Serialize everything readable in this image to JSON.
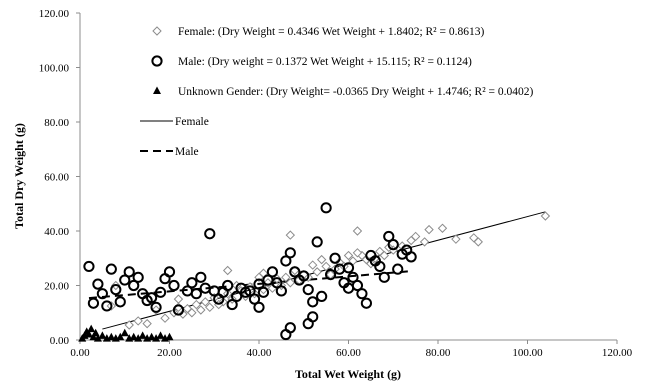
{
  "chart_data": {
    "type": "scatter",
    "title": "",
    "xlabel": "Total Wet Weight (g)",
    "ylabel": "Total Dry Weight (g)",
    "xlim": [
      0,
      120
    ],
    "ylim": [
      0,
      120
    ],
    "x_ticks": [
      "0.00",
      "20.00",
      "40.00",
      "60.00",
      "80.00",
      "100.00",
      "120.00"
    ],
    "y_ticks": [
      "0.00",
      "20.00",
      "40.00",
      "60.00",
      "80.00",
      "100.00",
      "120.00"
    ],
    "grid": false,
    "legend_position": "top-left",
    "legend": [
      {
        "label": "Female: (Dry Weight = 0.4346 Wet Weight + 1.8402; R² = 0.8613)",
        "marker": "diamond"
      },
      {
        "label": "Male: (Dry weight = 0.1372 Wet Weight + 15.115; R² = 0.1124)",
        "marker": "circle"
      },
      {
        "label": "Unknown Gender: (Dry Weight= -0.0365 Dry Weight + 1.4746; R² = 0.0402)",
        "marker": "triangle"
      },
      {
        "label": "Female",
        "marker": "solid-line"
      },
      {
        "label": "Male",
        "marker": "dashed-line"
      }
    ],
    "series": [
      {
        "name": "Female",
        "marker": "diamond",
        "color": "#8c8c8c",
        "points": [
          [
            104,
            45.5
          ],
          [
            89,
            36
          ],
          [
            88,
            37.5
          ],
          [
            84,
            37
          ],
          [
            81,
            41
          ],
          [
            78,
            40.5
          ],
          [
            77,
            36
          ],
          [
            75,
            38
          ],
          [
            74,
            36.5
          ],
          [
            72,
            34.5
          ],
          [
            70,
            33
          ],
          [
            69,
            34
          ],
          [
            68,
            31
          ],
          [
            67,
            32.5
          ],
          [
            66,
            30
          ],
          [
            65,
            28
          ],
          [
            64,
            29.5
          ],
          [
            63,
            31
          ],
          [
            62,
            32
          ],
          [
            62,
            40
          ],
          [
            61,
            29
          ],
          [
            60,
            31
          ],
          [
            59,
            27
          ],
          [
            58,
            28.5
          ],
          [
            57,
            26
          ],
          [
            56,
            24
          ],
          [
            55,
            27
          ],
          [
            54,
            29.5
          ],
          [
            53,
            25
          ],
          [
            52,
            27.5
          ],
          [
            51,
            23
          ],
          [
            50,
            24
          ],
          [
            49,
            22
          ],
          [
            48,
            25.5
          ],
          [
            47,
            38.5
          ],
          [
            47,
            21
          ],
          [
            46,
            23
          ],
          [
            45,
            20
          ],
          [
            44,
            22.5
          ],
          [
            43,
            19
          ],
          [
            42,
            21
          ],
          [
            41,
            18.5
          ],
          [
            41,
            24.5
          ],
          [
            40,
            23
          ],
          [
            39,
            17
          ],
          [
            38,
            19.5
          ],
          [
            37,
            16
          ],
          [
            36,
            18
          ],
          [
            35,
            20
          ],
          [
            34,
            15
          ],
          [
            33,
            25.5
          ],
          [
            33,
            17
          ],
          [
            32,
            14
          ],
          [
            31,
            13
          ],
          [
            30,
            15.5
          ],
          [
            29,
            12
          ],
          [
            28,
            14
          ],
          [
            27,
            11
          ],
          [
            26,
            13
          ],
          [
            25,
            10
          ],
          [
            24,
            11.5
          ],
          [
            23,
            9.5
          ],
          [
            22,
            15
          ],
          [
            22,
            12
          ],
          [
            21,
            10
          ],
          [
            19,
            8
          ],
          [
            17,
            11
          ],
          [
            15,
            6
          ],
          [
            13,
            7
          ],
          [
            11,
            5.5
          ],
          [
            8,
            20
          ],
          [
            7,
            12.5
          ]
        ]
      },
      {
        "name": "Male",
        "marker": "circle",
        "color": "#000000",
        "points": [
          [
            2,
            27
          ],
          [
            3,
            13.5
          ],
          [
            4,
            20.5
          ],
          [
            5,
            17
          ],
          [
            6,
            12.5
          ],
          [
            7,
            26
          ],
          [
            8,
            18.5
          ],
          [
            9,
            14
          ],
          [
            10,
            22
          ],
          [
            11,
            25
          ],
          [
            12,
            20
          ],
          [
            13,
            23
          ],
          [
            14,
            17
          ],
          [
            15,
            14.5
          ],
          [
            16,
            15.5
          ],
          [
            17,
            12
          ],
          [
            18,
            17.5
          ],
          [
            19,
            22.5
          ],
          [
            20,
            25
          ],
          [
            21,
            20
          ],
          [
            22,
            11
          ],
          [
            24,
            18
          ],
          [
            25,
            21
          ],
          [
            26,
            17
          ],
          [
            27,
            23
          ],
          [
            28,
            19
          ],
          [
            29,
            39
          ],
          [
            30,
            18
          ],
          [
            31,
            15
          ],
          [
            32,
            17.5
          ],
          [
            33,
            20
          ],
          [
            34,
            13
          ],
          [
            35,
            16
          ],
          [
            36,
            19
          ],
          [
            37,
            17.5
          ],
          [
            38,
            18
          ],
          [
            39,
            15
          ],
          [
            40,
            12
          ],
          [
            40,
            20.5
          ],
          [
            41,
            17.5
          ],
          [
            42,
            22
          ],
          [
            43,
            25
          ],
          [
            44,
            21
          ],
          [
            45,
            18
          ],
          [
            46,
            29
          ],
          [
            47,
            32
          ],
          [
            48,
            25
          ],
          [
            49,
            22
          ],
          [
            50,
            23.5
          ],
          [
            51,
            18.5
          ],
          [
            52,
            14
          ],
          [
            53,
            36
          ],
          [
            54,
            16
          ],
          [
            55,
            48.5
          ],
          [
            56,
            24
          ],
          [
            57,
            30
          ],
          [
            58,
            26
          ],
          [
            59,
            21
          ],
          [
            60,
            19
          ],
          [
            60,
            26.5
          ],
          [
            61,
            23
          ],
          [
            62,
            20
          ],
          [
            63,
            17
          ],
          [
            64,
            13.5
          ],
          [
            65,
            31
          ],
          [
            66,
            29
          ],
          [
            67,
            27
          ],
          [
            68,
            23
          ],
          [
            69,
            38
          ],
          [
            70,
            35
          ],
          [
            71,
            26
          ],
          [
            72,
            31.5
          ],
          [
            73,
            33
          ],
          [
            74,
            30.5
          ],
          [
            46,
            2
          ],
          [
            47,
            4.5
          ],
          [
            51,
            6
          ],
          [
            52,
            8.5
          ]
        ]
      },
      {
        "name": "Unknown Gender",
        "marker": "triangle",
        "color": "#000000",
        "points": [
          [
            0.5,
            0.5
          ],
          [
            1,
            1.5
          ],
          [
            1.5,
            3
          ],
          [
            2,
            2
          ],
          [
            2.5,
            4
          ],
          [
            3,
            1
          ],
          [
            3.5,
            2.5
          ],
          [
            4,
            0.5
          ],
          [
            5,
            1.5
          ],
          [
            6,
            0.5
          ],
          [
            7,
            1
          ],
          [
            8,
            0.5
          ],
          [
            9,
            1
          ],
          [
            10,
            2.5
          ],
          [
            11,
            0.5
          ],
          [
            12,
            1
          ],
          [
            13,
            0.5
          ],
          [
            14,
            1.5
          ],
          [
            15,
            0.5
          ],
          [
            16,
            1
          ],
          [
            17,
            0.5
          ],
          [
            18,
            1.5
          ],
          [
            19,
            0.5
          ],
          [
            20,
            1
          ]
        ]
      }
    ],
    "trendlines": [
      {
        "name": "Female",
        "style": "solid",
        "slope": 0.4346,
        "intercept": 1.8402,
        "x_range": [
          5,
          104
        ]
      },
      {
        "name": "Male",
        "style": "dashed",
        "slope": 0.1372,
        "intercept": 15.115,
        "x_range": [
          2,
          74
        ]
      }
    ]
  }
}
